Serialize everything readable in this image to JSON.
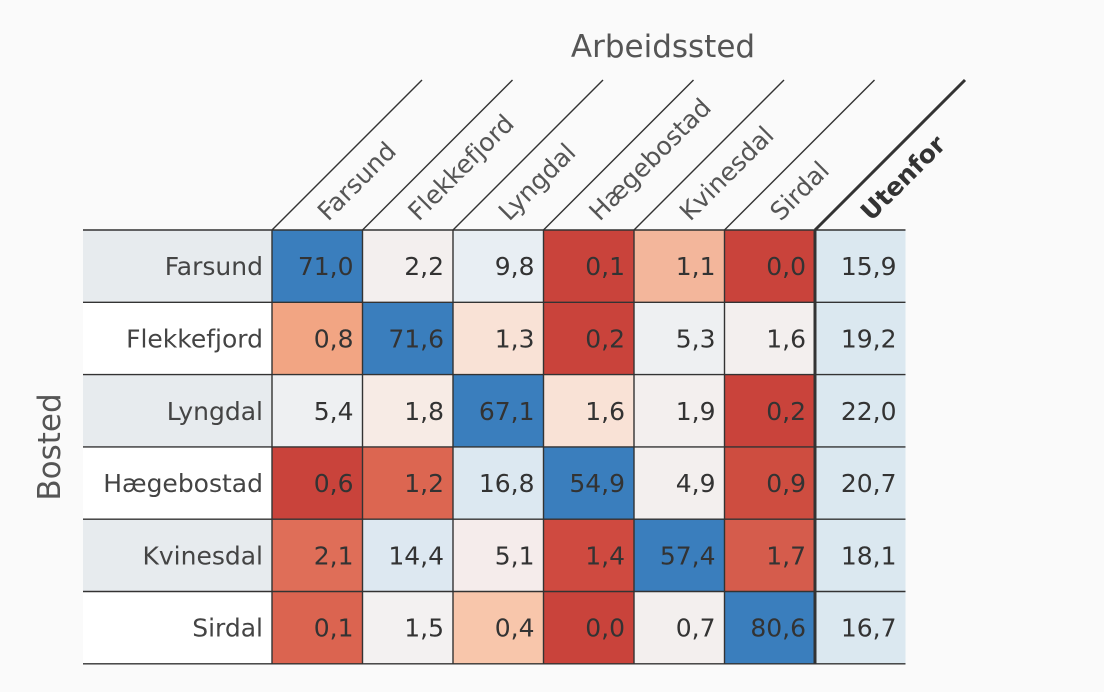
{
  "chart_data": {
    "type": "heatmap",
    "column_axis_title": "Arbeidssted",
    "row_axis_title": "Bosted",
    "columns": [
      "Farsund",
      "Flekkefjord",
      "Lyngdal",
      "Hægebostad",
      "Kvinesdal",
      "Sirdal",
      "Utenfor"
    ],
    "emphasized_column": "Utenfor",
    "rows": [
      "Farsund",
      "Flekkefjord",
      "Lyngdal",
      "Hægebostad",
      "Kvinesdal",
      "Sirdal"
    ],
    "values": [
      [
        71.0,
        2.2,
        9.8,
        0.1,
        1.1,
        0.0,
        15.9
      ],
      [
        0.8,
        71.6,
        1.3,
        0.2,
        5.3,
        1.6,
        19.2
      ],
      [
        5.4,
        1.8,
        67.1,
        1.6,
        1.9,
        0.2,
        22.0
      ],
      [
        0.6,
        1.2,
        16.8,
        54.9,
        4.9,
        0.9,
        20.7
      ],
      [
        2.1,
        14.4,
        5.1,
        1.4,
        57.4,
        1.7,
        18.1
      ],
      [
        0.1,
        1.5,
        0.4,
        0.0,
        0.7,
        80.6,
        16.7
      ]
    ],
    "display_values": [
      [
        "71,0",
        "2,2",
        "9,8",
        "0,1",
        "1,1",
        "0,0",
        "15,9"
      ],
      [
        "0,8",
        "71,6",
        "1,3",
        "0,2",
        "5,3",
        "1,6",
        "19,2"
      ],
      [
        "5,4",
        "1,8",
        "67,1",
        "1,6",
        "1,9",
        "0,2",
        "22,0"
      ],
      [
        "0,6",
        "1,2",
        "16,8",
        "54,9",
        "4,9",
        "0,9",
        "20,7"
      ],
      [
        "2,1",
        "14,4",
        "5,1",
        "1,4",
        "57,4",
        "1,7",
        "18,1"
      ],
      [
        "0,1",
        "1,5",
        "0,4",
        "0,0",
        "0,7",
        "80,6",
        "16,7"
      ]
    ],
    "cell_colors": [
      [
        "#3a7ebd",
        "#f3efee",
        "#e8eef3",
        "#c9433b",
        "#f3b69b",
        "#c9433b",
        "#dbe8f0"
      ],
      [
        "#f2a583",
        "#3a7ebd",
        "#f9e2d6",
        "#c9433b",
        "#eef0f2",
        "#f3efee",
        "#dbe8f0"
      ],
      [
        "#eef0f2",
        "#f7ebe5",
        "#3a7ebd",
        "#f9e2d6",
        "#f3efee",
        "#c9433b",
        "#dbe8f0"
      ],
      [
        "#c9433b",
        "#dc6651",
        "#dce8f1",
        "#3a7ebd",
        "#f3efee",
        "#ce4d40",
        "#dbe8f0"
      ],
      [
        "#df6e58",
        "#dde8f1",
        "#f5eceb",
        "#cf4a40",
        "#3a7ebd",
        "#d55c4c",
        "#dbe8f0"
      ],
      [
        "#db6450",
        "#f3f1f1",
        "#f8c6ab",
        "#c9433b",
        "#f3efee",
        "#3a7ebd",
        "#dbe8f0"
      ]
    ],
    "row_label_backgrounds": [
      "#e7ebee",
      "#ffffff"
    ],
    "line_color": "#333333",
    "colorscale": {
      "low": "#c9433b",
      "mid": "#f3efee",
      "high": "#3a7ebd"
    }
  }
}
